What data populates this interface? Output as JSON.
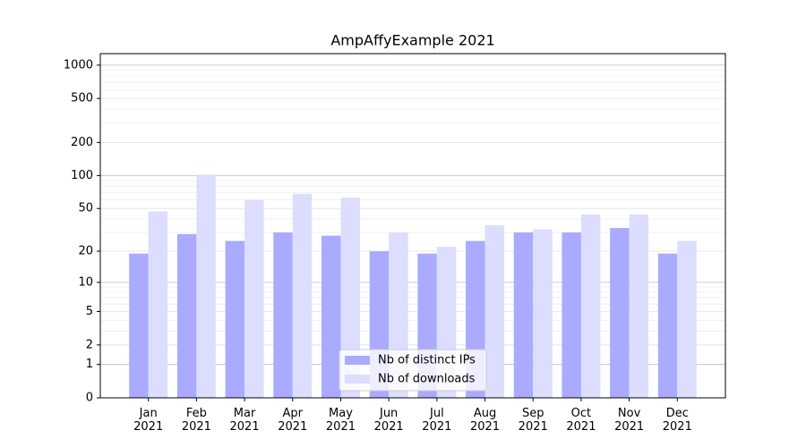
{
  "chart_data": {
    "type": "bar",
    "title": "AmpAffyExample 2021",
    "categories": [
      "Jan\n2021",
      "Feb\n2021",
      "Mar\n2021",
      "Apr\n2021",
      "May\n2021",
      "Jun\n2021",
      "Jul\n2021",
      "Aug\n2021",
      "Sep\n2021",
      "Oct\n2021",
      "Nov\n2021",
      "Dec\n2021"
    ],
    "series": [
      {
        "name": "Nb of distinct IPs",
        "color": "#aaaaff",
        "values": [
          19,
          29,
          25,
          30,
          28,
          20,
          19,
          25,
          30,
          30,
          33,
          19
        ]
      },
      {
        "name": "Nb of downloads",
        "color": "#ddddff",
        "values": [
          47,
          102,
          60,
          68,
          63,
          30,
          22,
          35,
          32,
          44,
          44,
          25
        ]
      }
    ],
    "yscale": "log1p",
    "ylim": [
      0,
      1270
    ],
    "yticks": [
      0,
      1,
      2,
      5,
      10,
      20,
      50,
      100,
      200,
      500,
      1000
    ],
    "grid": true,
    "legend": "lower center"
  }
}
